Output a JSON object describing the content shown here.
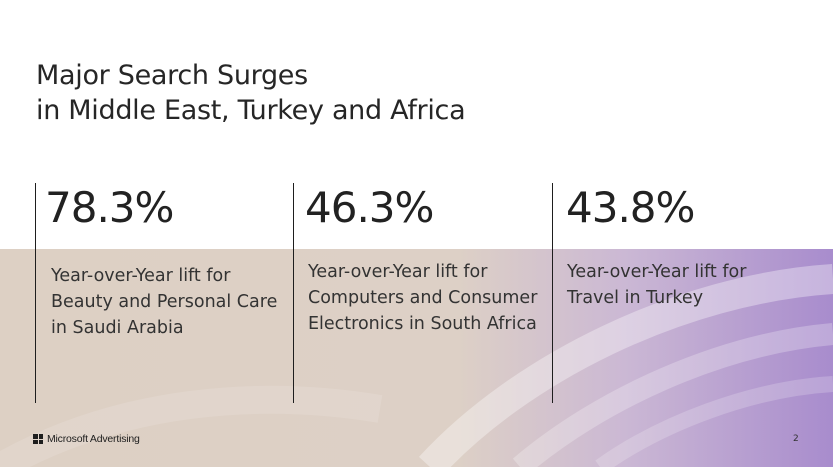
{
  "title": {
    "line1": "Major Search Surges",
    "line2": "in Middle East, Turkey and Africa"
  },
  "stats": [
    {
      "value": "78.3%",
      "description": "Year-over-Year lift for Beauty and Personal Care in Saudi Arabia"
    },
    {
      "value": "46.3%",
      "description": "Year-over-Year lift for Computers and Consumer Electronics in South Africa"
    },
    {
      "value": "43.8%",
      "description": "Year-over-Year lift for Travel in Turkey"
    }
  ],
  "footer": {
    "brand": "Microsoft Advertising",
    "page_number": "2"
  },
  "colors": {
    "band_beige": "#ddd0c4",
    "band_purple": "#a88ccd",
    "text": "#262626"
  },
  "icons": {
    "brand_logo": "microsoft-logo-icon"
  }
}
